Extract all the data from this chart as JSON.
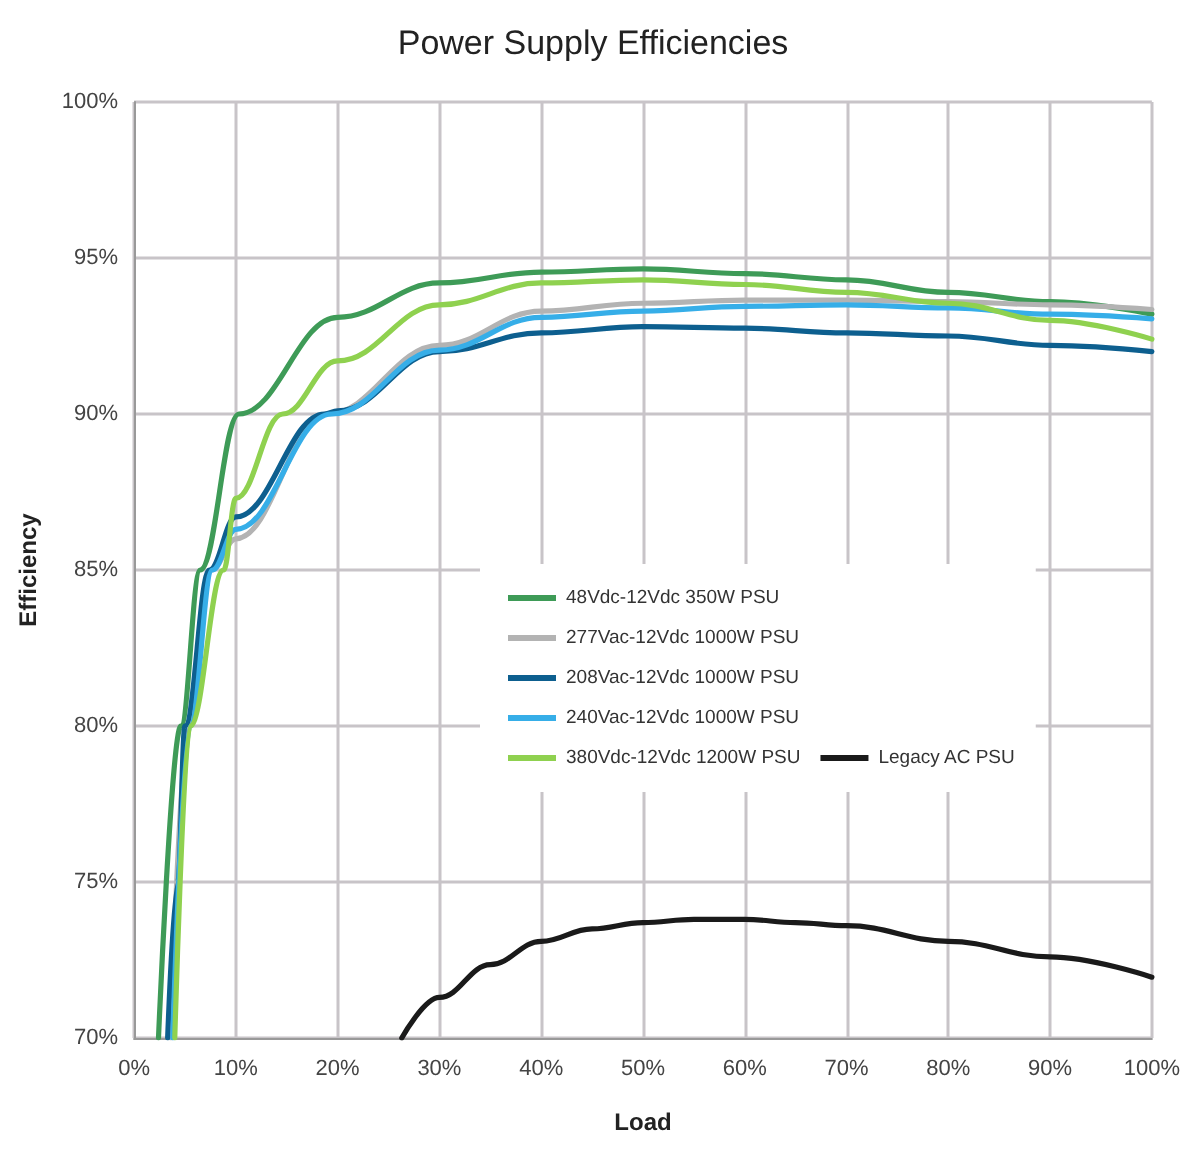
{
  "chart_data": {
    "type": "line",
    "title": "Power Supply Efficiencies",
    "xlabel": "Load",
    "ylabel": "Efficiency",
    "series": [
      {
        "name": "48Vdc-12Vdc 350W PSU",
        "color": "#3e9b57",
        "x": [
          2.4,
          4.6,
          6.5,
          10.3,
          20,
          30,
          40,
          50,
          60,
          70,
          80,
          90,
          100
        ],
        "values": [
          70,
          80,
          85,
          90,
          93.1,
          94.2,
          94.55,
          94.65,
          94.5,
          94.3,
          93.9,
          93.6,
          93.2
        ]
      },
      {
        "name": "277Vac-12Vdc 1000W PSU",
        "color": "#b3b3b3",
        "x": [
          3.6,
          5.3,
          7.6,
          10,
          19,
          30,
          40,
          50,
          60,
          70,
          80,
          90,
          100
        ],
        "values": [
          70,
          80,
          85,
          86,
          90,
          92.2,
          93.3,
          93.55,
          93.65,
          93.65,
          93.6,
          93.5,
          93.35
        ]
      },
      {
        "name": "208Vac-12Vdc 1000W PSU",
        "color": "#0d5f8f",
        "x": [
          3.3,
          4.3,
          5,
          7.4,
          10,
          18.7,
          20,
          30,
          40,
          50,
          60,
          70,
          80,
          90,
          100
        ],
        "values": [
          70,
          75,
          80,
          85,
          86.7,
          90,
          90.1,
          92,
          92.6,
          92.8,
          92.75,
          92.6,
          92.5,
          92.2,
          92
        ]
      },
      {
        "name": "240Vac-12Vdc 1000W PSU",
        "color": "#36aee8",
        "x": [
          3.8,
          5.5,
          7.7,
          10,
          19.4,
          30,
          40,
          50,
          60,
          70,
          80,
          90,
          100
        ],
        "values": [
          70,
          80,
          85,
          86.3,
          90,
          92.05,
          93.1,
          93.3,
          93.45,
          93.5,
          93.4,
          93.2,
          93.05
        ]
      },
      {
        "name": "380Vdc-12Vdc 1200W PSU",
        "color": "#8fd14f",
        "x": [
          4,
          5.5,
          8.8,
          10,
          14.6,
          20,
          30,
          40,
          50,
          60,
          70,
          80,
          90,
          100
        ],
        "values": [
          70,
          80,
          85,
          87.3,
          90,
          91.7,
          93.5,
          94.2,
          94.3,
          94.15,
          93.9,
          93.55,
          93,
          92.4
        ]
      },
      {
        "name": "Legacy AC PSU",
        "color": "#1a1a1a",
        "x": [
          26.3,
          30,
          35,
          40,
          45,
          50,
          55,
          60,
          65,
          70,
          80,
          90,
          100
        ],
        "values": [
          70,
          71.3,
          72.35,
          73.1,
          73.5,
          73.7,
          73.8,
          73.8,
          73.7,
          73.6,
          73.1,
          72.6,
          71.95
        ]
      }
    ],
    "xlim": [
      0,
      100
    ],
    "xticks": [
      {
        "value": 0,
        "label": "0%"
      },
      {
        "value": 10,
        "label": "10%"
      },
      {
        "value": 20,
        "label": "20%"
      },
      {
        "value": 30,
        "label": "30%"
      },
      {
        "value": 40,
        "label": "40%"
      },
      {
        "value": 50,
        "label": "50%"
      },
      {
        "value": 60,
        "label": "60%"
      },
      {
        "value": 70,
        "label": "70%"
      },
      {
        "value": 80,
        "label": "80%"
      },
      {
        "value": 90,
        "label": "90%"
      },
      {
        "value": 100,
        "label": "100%"
      }
    ],
    "ylim": [
      70,
      100
    ],
    "yticks": [
      {
        "value": 70,
        "label": "70%"
      },
      {
        "value": 75,
        "label": "75%"
      },
      {
        "value": 80,
        "label": "80%"
      },
      {
        "value": 85,
        "label": "85%"
      },
      {
        "value": 90,
        "label": "90%"
      },
      {
        "value": 95,
        "label": "95%"
      },
      {
        "value": 100,
        "label": "100%"
      }
    ],
    "grid": true,
    "legend": "center right",
    "marker": "none",
    "line_style": "solid"
  }
}
